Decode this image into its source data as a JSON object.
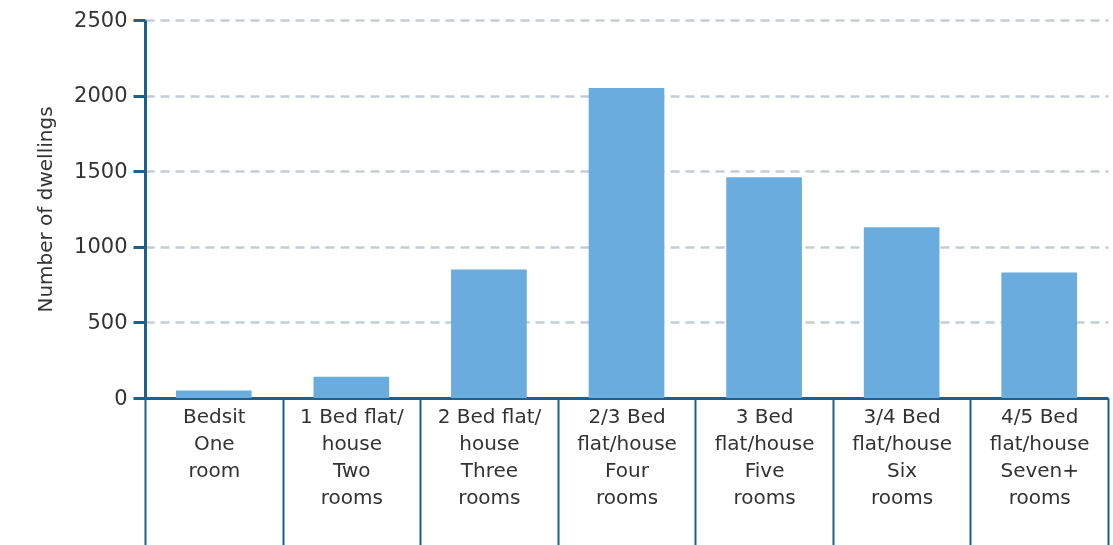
{
  "chart_data": {
    "type": "bar",
    "ylabel": "Number of dwellings",
    "categories": [
      "Bedsit\n\nOne\nroom",
      "1 Bed flat/\nhouse\n\nTwo\nrooms",
      "2 Bed flat/\nhouse\n\nThree\nrooms",
      "2/3 Bed\nflat/house\n\nFour\nrooms",
      "3 Bed\nflat/house\n\nFive\nrooms",
      "3/4 Bed\nflat/house\n\nSix\nrooms",
      "4/5 Bed\nflat/house\n\nSeven+\nrooms"
    ],
    "values": [
      50,
      140,
      850,
      2050,
      1460,
      1130,
      830
    ],
    "color": "#6aacde",
    "ylim": [
      0,
      2500
    ],
    "yticks": [
      0,
      500,
      1000,
      1500,
      2000,
      2500
    ],
    "grid": "y"
  }
}
